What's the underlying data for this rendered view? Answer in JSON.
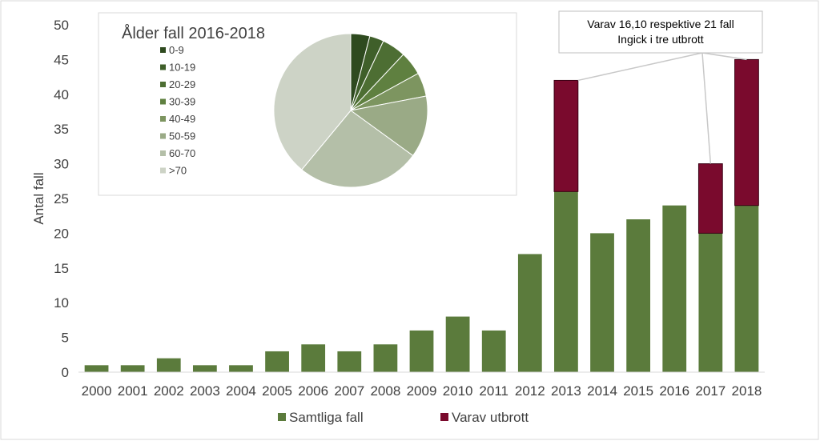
{
  "chart_data": [
    {
      "type": "bar",
      "stacked": true,
      "categories": [
        "2000",
        "2001",
        "2002",
        "2003",
        "2004",
        "2005",
        "2006",
        "2007",
        "2008",
        "2009",
        "2010",
        "2011",
        "2012",
        "2013",
        "2014",
        "2015",
        "2016",
        "2017",
        "2018"
      ],
      "series": [
        {
          "name": "Samtliga fall",
          "values": [
            1,
            1,
            2,
            1,
            1,
            3,
            4,
            3,
            4,
            6,
            8,
            6,
            17,
            26,
            20,
            22,
            24,
            20,
            24
          ],
          "color": "#5b7b3c"
        },
        {
          "name": "Varav utbrott",
          "values": [
            0,
            0,
            0,
            0,
            0,
            0,
            0,
            0,
            0,
            0,
            0,
            0,
            0,
            16,
            0,
            0,
            0,
            10,
            21
          ],
          "color": "#7a0a2d"
        }
      ],
      "ylabel": "Antal fall",
      "ylim": [
        0,
        50
      ],
      "yticks": [
        0,
        5,
        10,
        15,
        20,
        25,
        30,
        35,
        40,
        45,
        50
      ],
      "grid": false,
      "legend": "bottom",
      "annotation": {
        "lines": [
          "Varav 16,10 respektive 21 fall",
          "Ingick i tre utbrott"
        ],
        "targets": [
          "2013",
          "2017",
          "2018"
        ]
      }
    },
    {
      "type": "pie",
      "title": "Ålder fall 2016-2018",
      "labels": [
        "0-9",
        "10-19",
        "20-29",
        "30-39",
        "40-49",
        "50-59",
        "60-70",
        ">70"
      ],
      "values": [
        4,
        3,
        5,
        5,
        5,
        13,
        26,
        39
      ],
      "colors": [
        "#2e4a1f",
        "#3f5f2a",
        "#4d6e33",
        "#5f8040",
        "#7d9560",
        "#9aaa86",
        "#b4bfa8",
        "#cdd3c6"
      ],
      "legend": "left"
    }
  ]
}
